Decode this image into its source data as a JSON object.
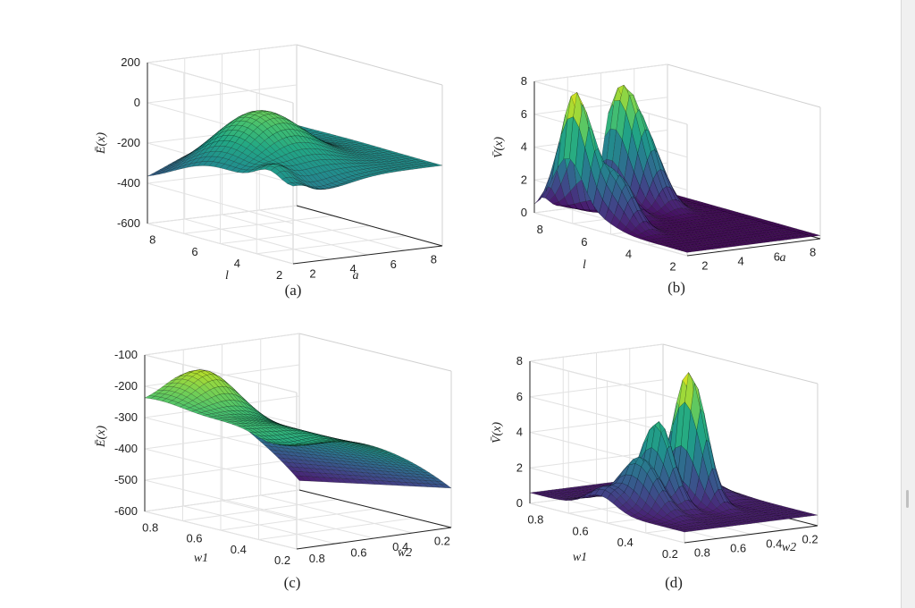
{
  "chart_data": [
    {
      "id": "a",
      "type": "surface",
      "caption": "(a)",
      "zlabel": "Ē(x)",
      "xlabel": "a",
      "ylabel": "l",
      "x_ticks": [
        "2",
        "4",
        "6",
        "8"
      ],
      "y_ticks": [
        "8",
        "6",
        "4",
        "2"
      ],
      "z_ticks": [
        "-600",
        "-400",
        "-200",
        "0",
        "200"
      ],
      "zlim": [
        -600,
        200
      ],
      "xlim": [
        1,
        8
      ],
      "ylim": [
        1,
        8
      ],
      "grid": true,
      "colormap": "viridis"
    },
    {
      "id": "b",
      "type": "surface",
      "caption": "(b)",
      "zlabel": "V̄(x)",
      "xlabel": "a",
      "ylabel": "l",
      "x_ticks": [
        "2",
        "4",
        "6",
        "8"
      ],
      "y_ticks": [
        "8",
        "6",
        "4",
        "2"
      ],
      "z_ticks": [
        "0",
        "2",
        "4",
        "6",
        "8"
      ],
      "zlim": [
        0,
        8
      ],
      "xlim": [
        1,
        8
      ],
      "ylim": [
        1,
        8
      ],
      "grid": true,
      "colormap": "viridis"
    },
    {
      "id": "c",
      "type": "surface",
      "caption": "(c)",
      "zlabel": "Ē(x)",
      "xlabel": "w2",
      "ylabel": "w1",
      "x_ticks": [
        "0.8",
        "0.6",
        "0.4",
        "0.2"
      ],
      "y_ticks": [
        "0.8",
        "0.6",
        "0.4",
        "0.2"
      ],
      "z_ticks": [
        "-600",
        "-500",
        "-400",
        "-300",
        "-200",
        "-100"
      ],
      "zlim": [
        -600,
        -100
      ],
      "xlim": [
        0.8,
        0.2
      ],
      "ylim": [
        0.8,
        0.2
      ],
      "grid": true,
      "colormap": "viridis"
    },
    {
      "id": "d",
      "type": "surface",
      "caption": "(d)",
      "zlabel": "V̄(x)",
      "xlabel": "w2",
      "ylabel": "w1",
      "x_ticks": [
        "0.8",
        "0.6",
        "0.4",
        "0.2"
      ],
      "y_ticks": [
        "0.8",
        "0.6",
        "0.4",
        "0.2"
      ],
      "z_ticks": [
        "0",
        "2",
        "4",
        "6",
        "8"
      ],
      "zlim": [
        0,
        8
      ],
      "xlim": [
        0.8,
        0.2
      ],
      "ylim": [
        0.8,
        0.2
      ],
      "grid": true,
      "colormap": "viridis"
    }
  ]
}
